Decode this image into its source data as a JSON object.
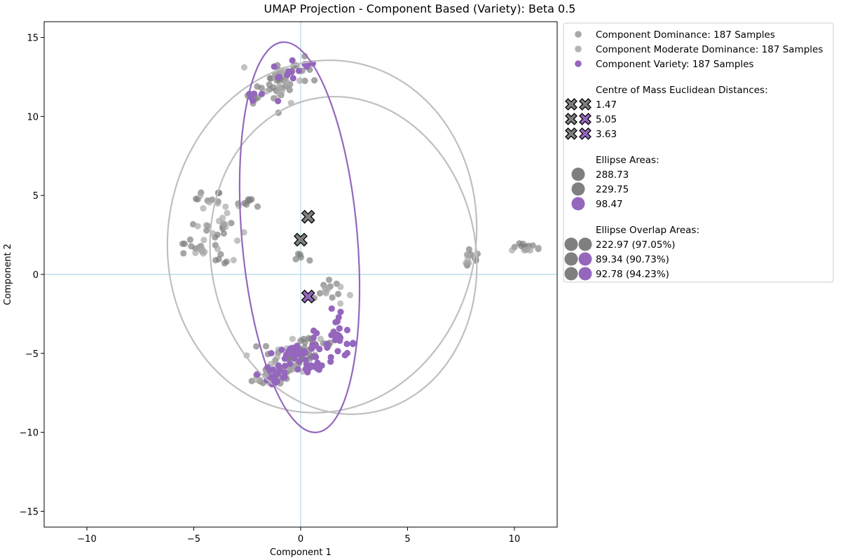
{
  "chart_data": {
    "type": "scatter",
    "title": "UMAP Projection - Component Based (Variety): Beta 0.5",
    "xlabel": "Component 1",
    "ylabel": "Component 2",
    "xlim": [
      -12,
      12
    ],
    "ylim": [
      -16,
      16
    ],
    "xticks": [
      -10,
      -5,
      0,
      5,
      10
    ],
    "yticks": [
      -15,
      -10,
      -5,
      0,
      5,
      10,
      15
    ],
    "xtick_labels": [
      "−10",
      "−5",
      "0",
      "5",
      "10"
    ],
    "ytick_labels": [
      "−15",
      "−10",
      "−5",
      "0",
      "5",
      "10",
      "15"
    ],
    "reference_lines": {
      "x": 0,
      "y": 0,
      "color": "#add8e6"
    },
    "colors": {
      "dominance": "#7f7f7f",
      "moderate": "#a8a8a8",
      "variety": "#9467bd",
      "ellipse_gray": "#bfbfbf"
    },
    "series": [
      {
        "name": "Component Dominance: 187 Samples",
        "color": "#7f7f7f",
        "clusters": [
          {
            "cx": -0.9,
            "cy": 12.2,
            "sx": 0.45,
            "sy": 0.75,
            "n": 20
          },
          {
            "cx": 0.3,
            "cy": 13.0,
            "sx": 0.3,
            "sy": 0.4,
            "n": 6
          },
          {
            "cx": -1.5,
            "cy": 11.5,
            "sx": 0.6,
            "sy": 0.5,
            "n": 10
          },
          {
            "cx": -4.3,
            "cy": 4.8,
            "sx": 0.3,
            "sy": 0.25,
            "n": 8
          },
          {
            "cx": -2.3,
            "cy": 4.6,
            "sx": 0.4,
            "sy": 0.15,
            "n": 8
          },
          {
            "cx": -4.0,
            "cy": 2.8,
            "sx": 0.5,
            "sy": 0.3,
            "n": 10
          },
          {
            "cx": -5.2,
            "cy": 1.7,
            "sx": 0.3,
            "sy": 0.3,
            "n": 8
          },
          {
            "cx": -3.8,
            "cy": 1.1,
            "sx": 0.3,
            "sy": 0.3,
            "n": 6
          },
          {
            "cx": 0.0,
            "cy": 1.0,
            "sx": 0.2,
            "sy": 0.2,
            "n": 5
          },
          {
            "cx": 7.9,
            "cy": 1.0,
            "sx": 0.25,
            "sy": 0.35,
            "n": 9
          },
          {
            "cx": 10.7,
            "cy": 1.7,
            "sx": 0.4,
            "sy": 0.12,
            "n": 10
          },
          {
            "cx": 1.3,
            "cy": -0.9,
            "sx": 0.35,
            "sy": 0.4,
            "n": 8
          },
          {
            "cx": -0.7,
            "cy": -5.2,
            "sx": 0.6,
            "sy": 0.6,
            "n": 28
          },
          {
            "cx": 0.6,
            "cy": -4.6,
            "sx": 0.6,
            "sy": 0.5,
            "n": 20
          },
          {
            "cx": -1.2,
            "cy": -6.5,
            "sx": 0.5,
            "sy": 0.3,
            "n": 12
          }
        ],
        "centroid": {
          "x": 0.0,
          "y": 2.2
        },
        "ellipse": {
          "cx": 2.0,
          "cy": 1.2,
          "rx": 6.2,
          "ry": 10.1,
          "angle": 10
        }
      },
      {
        "name": "Component Moderate Dominance: 187 Samples",
        "color": "#a8a8a8",
        "clusters": [
          {
            "cx": -0.9,
            "cy": 12.3,
            "sx": 0.5,
            "sy": 0.7,
            "n": 16
          },
          {
            "cx": -4.0,
            "cy": 2.9,
            "sx": 0.6,
            "sy": 0.6,
            "n": 12
          },
          {
            "cx": -4.5,
            "cy": 1.5,
            "sx": 0.5,
            "sy": 0.3,
            "n": 8
          },
          {
            "cx": -3.8,
            "cy": 4.5,
            "sx": 0.5,
            "sy": 0.4,
            "n": 6
          },
          {
            "cx": 7.8,
            "cy": 1.0,
            "sx": 0.2,
            "sy": 0.3,
            "n": 6
          },
          {
            "cx": 10.5,
            "cy": 1.6,
            "sx": 0.3,
            "sy": 0.1,
            "n": 5
          },
          {
            "cx": 1.2,
            "cy": -1.2,
            "sx": 0.4,
            "sy": 0.4,
            "n": 8
          },
          {
            "cx": -0.5,
            "cy": -5.3,
            "sx": 0.7,
            "sy": 0.7,
            "n": 22
          },
          {
            "cx": -1.3,
            "cy": -6.6,
            "sx": 0.4,
            "sy": 0.2,
            "n": 8
          }
        ],
        "centroid": {
          "x": 0.35,
          "y": 3.65
        },
        "ellipse": {
          "cx": 1.0,
          "cy": 2.4,
          "rx": 7.2,
          "ry": 11.2,
          "angle": -10
        }
      },
      {
        "name": "Component Variety: 187 Samples",
        "color": "#9467bd",
        "clusters": [
          {
            "cx": -0.7,
            "cy": 12.5,
            "sx": 0.35,
            "sy": 0.45,
            "n": 10
          },
          {
            "cx": 0.3,
            "cy": 13.4,
            "sx": 0.2,
            "sy": 0.2,
            "n": 4
          },
          {
            "cx": -2.1,
            "cy": 11.3,
            "sx": 0.3,
            "sy": 0.3,
            "n": 5
          },
          {
            "cx": 1.8,
            "cy": -2.8,
            "sx": 0.2,
            "sy": 0.5,
            "n": 8
          },
          {
            "cx": 1.8,
            "cy": -4.4,
            "sx": 0.4,
            "sy": 0.4,
            "n": 16
          },
          {
            "cx": 0.5,
            "cy": -4.5,
            "sx": 0.4,
            "sy": 0.4,
            "n": 14
          },
          {
            "cx": -0.3,
            "cy": -5.3,
            "sx": 0.5,
            "sy": 0.4,
            "n": 22
          },
          {
            "cx": 0.5,
            "cy": -5.8,
            "sx": 0.4,
            "sy": 0.35,
            "n": 18
          },
          {
            "cx": -1.2,
            "cy": -6.3,
            "sx": 0.4,
            "sy": 0.4,
            "n": 14
          },
          {
            "cx": -1.1,
            "cy": -6.9,
            "sx": 0.2,
            "sy": 0.1,
            "n": 4
          }
        ],
        "centroid": {
          "x": 0.35,
          "y": -1.4
        },
        "ellipse": {
          "cx": -0.05,
          "cy": 2.35,
          "rx": 2.7,
          "ry": 12.4,
          "angle": 5
        }
      }
    ],
    "legend": {
      "placement": "outside-right",
      "samples": [
        {
          "label": "Component Dominance: 187 Samples",
          "color": "#a8a8a8"
        },
        {
          "label": "Component Moderate Dominance: 187 Samples",
          "color": "#b4b4b4"
        },
        {
          "label": "Component Variety: 187 Samples",
          "color": "#9467bd"
        }
      ],
      "distances_title": "Centre of Mass Euclidean Distances:",
      "distances": [
        {
          "label": "1.47",
          "colors": [
            "#7f7f7f",
            "#7f7f7f"
          ]
        },
        {
          "label": "5.05",
          "colors": [
            "#7f7f7f",
            "#9467bd"
          ]
        },
        {
          "label": "3.63",
          "colors": [
            "#7f7f7f",
            "#9467bd"
          ]
        }
      ],
      "areas_title": "Ellipse Areas:",
      "areas": [
        {
          "label": "288.73",
          "color": "#7f7f7f"
        },
        {
          "label": "229.75",
          "color": "#7f7f7f"
        },
        {
          "label": "98.47",
          "color": "#9467bd"
        }
      ],
      "overlap_title": "Ellipse Overlap Areas:",
      "overlaps": [
        {
          "label": "222.97 (97.05%)",
          "colors": [
            "#7f7f7f",
            "#7f7f7f"
          ]
        },
        {
          "label": "89.34 (90.73%)",
          "colors": [
            "#7f7f7f",
            "#9467bd"
          ]
        },
        {
          "label": "92.78 (94.23%)",
          "colors": [
            "#7f7f7f",
            "#9467bd"
          ]
        }
      ]
    }
  }
}
